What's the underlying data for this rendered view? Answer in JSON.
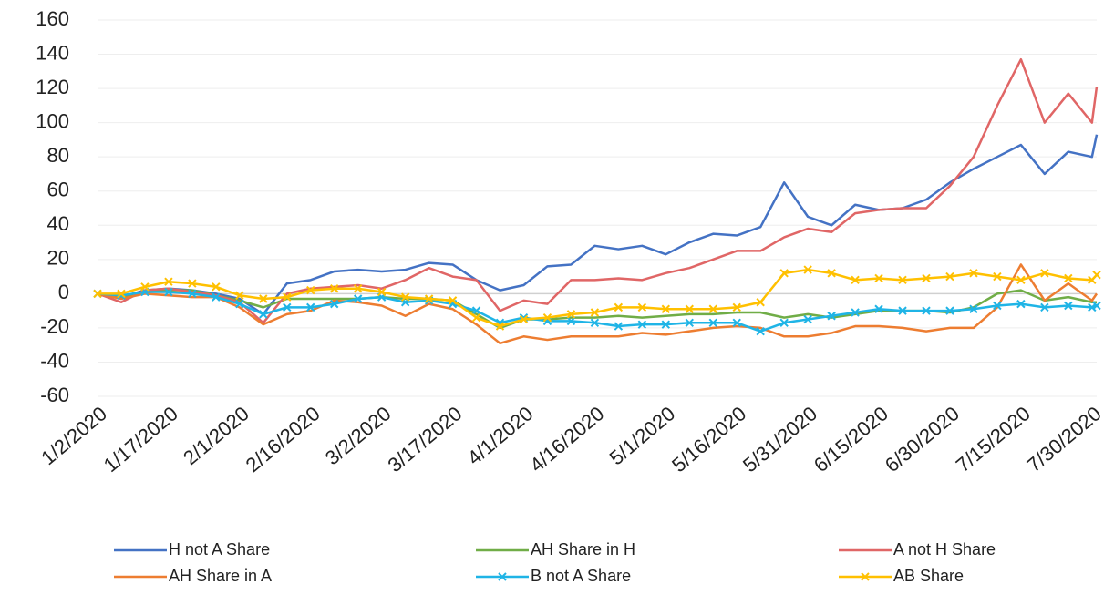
{
  "chart_data": {
    "type": "line",
    "x": [
      "1/2/2020",
      "1/7/2020",
      "1/12/2020",
      "1/17/2020",
      "1/22/2020",
      "1/27/2020",
      "2/1/2020",
      "2/6/2020",
      "2/11/2020",
      "2/16/2020",
      "2/21/2020",
      "2/26/2020",
      "3/2/2020",
      "3/7/2020",
      "3/12/2020",
      "3/17/2020",
      "3/22/2020",
      "3/27/2020",
      "4/1/2020",
      "4/6/2020",
      "4/11/2020",
      "4/16/2020",
      "4/21/2020",
      "4/26/2020",
      "5/1/2020",
      "5/6/2020",
      "5/11/2020",
      "5/16/2020",
      "5/21/2020",
      "5/26/2020",
      "5/31/2020",
      "6/5/2020",
      "6/10/2020",
      "6/15/2020",
      "6/20/2020",
      "6/25/2020",
      "6/30/2020",
      "7/5/2020",
      "7/10/2020",
      "7/15/2020",
      "7/20/2020",
      "7/25/2020",
      "7/30/2020",
      "7/31/2020"
    ],
    "series": [
      {
        "name": "H not A Share",
        "color": "#4472c4",
        "marker": false,
        "values": [
          0,
          -2,
          2,
          3,
          2,
          0,
          -3,
          -12,
          6,
          8,
          13,
          14,
          13,
          14,
          18,
          17,
          8,
          2,
          5,
          16,
          17,
          28,
          26,
          28,
          23,
          30,
          35,
          34,
          39,
          65,
          45,
          40,
          52,
          49,
          50,
          55,
          65,
          73,
          80,
          87,
          70,
          83,
          80,
          93
        ]
      },
      {
        "name": "AH Share in H",
        "color": "#70ad47",
        "marker": false,
        "values": [
          0,
          -2,
          1,
          2,
          2,
          -1,
          -4,
          -8,
          -3,
          -3,
          -3,
          -3,
          -2,
          -3,
          -3,
          -4,
          -12,
          -20,
          -15,
          -15,
          -14,
          -14,
          -13,
          -14,
          -13,
          -12,
          -12,
          -11,
          -11,
          -14,
          -12,
          -14,
          -12,
          -10,
          -10,
          -10,
          -11,
          -8,
          0,
          2,
          -4,
          -2,
          -5,
          -5
        ]
      },
      {
        "name": "A not H Share",
        "color": "#e06666",
        "marker": false,
        "values": [
          0,
          -5,
          2,
          3,
          1,
          -1,
          -5,
          -17,
          0,
          3,
          4,
          5,
          3,
          8,
          15,
          10,
          8,
          -10,
          -4,
          -6,
          8,
          8,
          9,
          8,
          12,
          15,
          20,
          25,
          25,
          33,
          38,
          36,
          47,
          49,
          50,
          50,
          63,
          80,
          110,
          137,
          100,
          117,
          100,
          121
        ]
      },
      {
        "name": "AH Share in A",
        "color": "#ed7d31",
        "marker": false,
        "values": [
          0,
          -3,
          0,
          -1,
          -2,
          -2,
          -8,
          -18,
          -12,
          -10,
          -4,
          -5,
          -7,
          -13,
          -6,
          -9,
          -18,
          -29,
          -25,
          -27,
          -25,
          -25,
          -25,
          -23,
          -24,
          -22,
          -20,
          -19,
          -20,
          -25,
          -25,
          -23,
          -19,
          -19,
          -20,
          -22,
          -20,
          -20,
          -8,
          17,
          -4,
          6,
          -4,
          0
        ]
      },
      {
        "name": "B not A Share",
        "color": "#1fb4e6",
        "marker": true,
        "values": [
          0,
          -1,
          1,
          1,
          0,
          -2,
          -6,
          -12,
          -8,
          -8,
          -6,
          -3,
          -2,
          -5,
          -4,
          -6,
          -10,
          -17,
          -14,
          -16,
          -16,
          -17,
          -19,
          -18,
          -18,
          -17,
          -17,
          -17,
          -22,
          -17,
          -15,
          -13,
          -11,
          -9,
          -10,
          -10,
          -10,
          -9,
          -7,
          -6,
          -8,
          -7,
          -8,
          -7
        ]
      },
      {
        "name": "AB Share",
        "color": "#ffc000",
        "marker": true,
        "values": [
          0,
          0,
          4,
          7,
          6,
          4,
          -1,
          -3,
          -2,
          2,
          3,
          3,
          1,
          -2,
          -3,
          -4,
          -14,
          -19,
          -15,
          -14,
          -12,
          -11,
          -8,
          -8,
          -9,
          -9,
          -9,
          -8,
          -5,
          12,
          14,
          12,
          8,
          9,
          8,
          9,
          10,
          12,
          10,
          8,
          12,
          9,
          8,
          11
        ]
      }
    ],
    "xlim": [
      "1/2/2020",
      "7/31/2020"
    ],
    "xticks": [
      "1/2/2020",
      "1/17/2020",
      "2/1/2020",
      "2/16/2020",
      "3/2/2020",
      "3/17/2020",
      "4/1/2020",
      "4/16/2020",
      "5/1/2020",
      "5/16/2020",
      "5/31/2020",
      "6/15/2020",
      "6/30/2020",
      "7/15/2020",
      "7/30/2020"
    ],
    "ylim": [
      -60,
      160
    ],
    "yticks": [
      -60,
      -40,
      -20,
      0,
      20,
      40,
      60,
      80,
      100,
      120,
      140,
      160
    ],
    "grid": true,
    "legend": "bottom"
  }
}
